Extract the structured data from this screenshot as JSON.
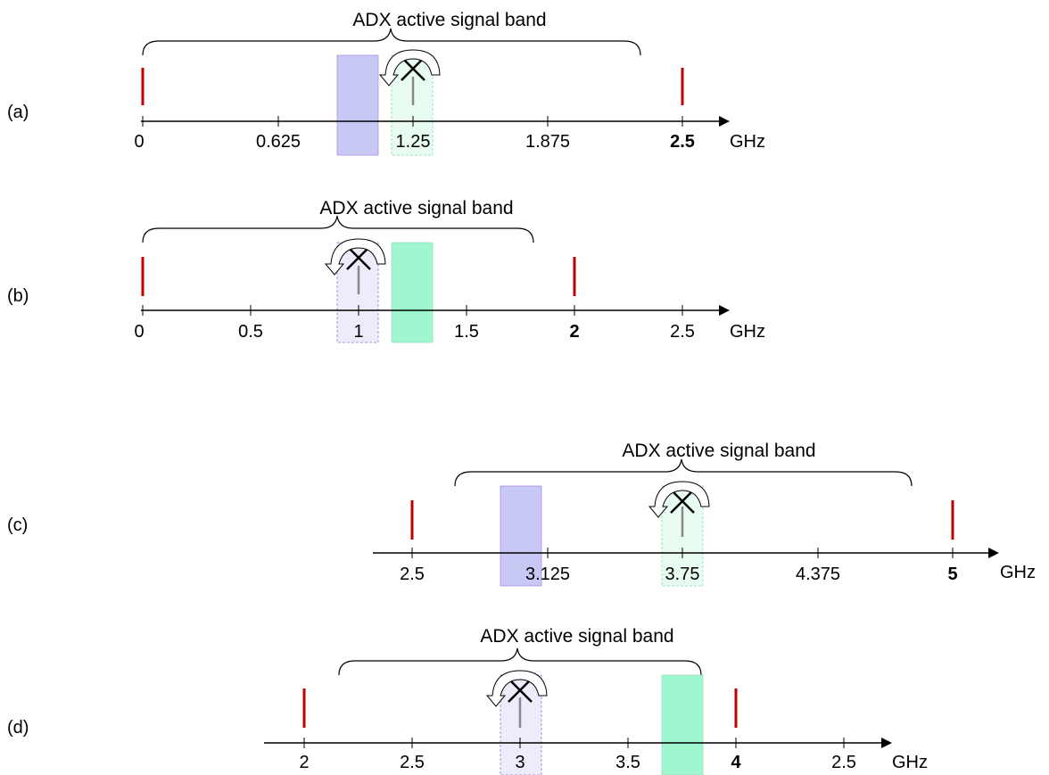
{
  "panels": [
    {
      "id": "a",
      "label": "(a)",
      "band_label": "ADX active signal band",
      "unit": "GHz",
      "ticks": [
        {
          "text": "0",
          "bold": false
        },
        {
          "text": "0.625",
          "bold": false
        },
        {
          "text": "1.25",
          "bold": false
        },
        {
          "text": "1.875",
          "bold": false
        },
        {
          "text": "2.5",
          "bold": true
        }
      ]
    },
    {
      "id": "b",
      "label": "(b)",
      "band_label": "ADX active signal band",
      "unit": "GHz",
      "ticks": [
        {
          "text": "0",
          "bold": false
        },
        {
          "text": "0.5",
          "bold": false
        },
        {
          "text": "1",
          "bold": false
        },
        {
          "text": "1.5",
          "bold": false
        },
        {
          "text": "2",
          "bold": true
        },
        {
          "text": "2.5",
          "bold": false
        }
      ]
    },
    {
      "id": "c",
      "label": "(c)",
      "band_label": "ADX active signal band",
      "unit": "GHz",
      "ticks": [
        {
          "text": "2.5",
          "bold": false
        },
        {
          "text": "3.125",
          "bold": false
        },
        {
          "text": "3.75",
          "bold": false
        },
        {
          "text": "4.375",
          "bold": false
        },
        {
          "text": "5",
          "bold": true
        }
      ]
    },
    {
      "id": "d",
      "label": "(d)",
      "band_label": "ADX active signal band",
      "unit": "GHz",
      "ticks": [
        {
          "text": "2",
          "bold": false
        },
        {
          "text": "2.5",
          "bold": false
        },
        {
          "text": "3",
          "bold": false
        },
        {
          "text": "3.5",
          "bold": false
        },
        {
          "text": "4",
          "bold": true
        },
        {
          "text": "2.5",
          "bold": false
        }
      ]
    }
  ],
  "colors": {
    "axis": "#000000",
    "red_marker": "#c00000",
    "blue_band": "#c8c8f4",
    "blue_band_faint": "#ececfb",
    "green_band": "#9ff7cf",
    "green_band_faint": "#e9fcf2",
    "band_border_blue": "#b08ee0",
    "band_border_green": "#9ee0bf",
    "gray_line": "#888888"
  }
}
